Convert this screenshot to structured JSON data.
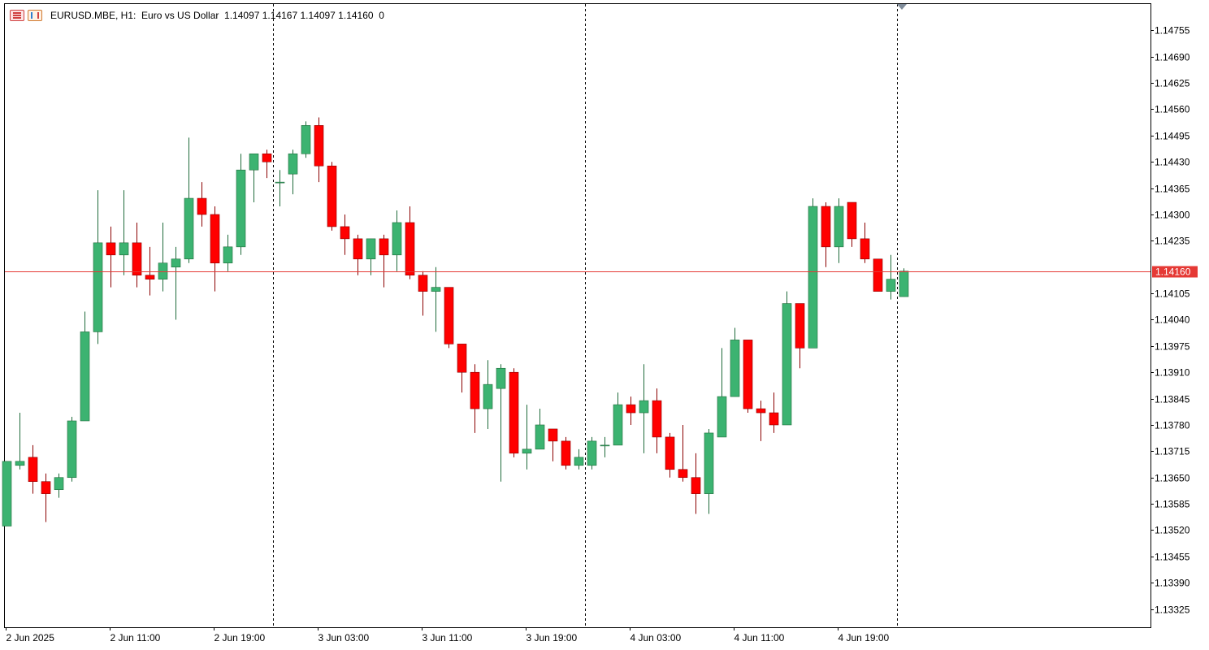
{
  "header": {
    "symbol_line": "EURUSD.MBE, H1:  Euro vs US Dollar  1.14097 1.14167 1.14097 1.14160  0"
  },
  "colors": {
    "bull": "#3cb371",
    "bull_border": "#1f6b3a",
    "bear": "#ff0000",
    "bear_border": "#8b0000",
    "price_line": "#e53935",
    "grid_sep": "#000000"
  },
  "chart_data": {
    "type": "candlestick",
    "timeframe": "H1",
    "symbol": "EURUSD.MBE",
    "current_price": 1.1416,
    "current_price_label": "1.14160",
    "y_ticks": [
      "1.14755",
      "1.14690",
      "1.14625",
      "1.14560",
      "1.14495",
      "1.14430",
      "1.14365",
      "1.14300",
      "1.14235",
      "1.14105",
      "1.14040",
      "1.13975",
      "1.13910",
      "1.13845",
      "1.13780",
      "1.13715",
      "1.13650",
      "1.13585",
      "1.13520",
      "1.13455",
      "1.13390",
      "1.13325"
    ],
    "x_labels": [
      "2 Jun 2025",
      "2 Jun 11:00",
      "2 Jun 19:00",
      "3 Jun 03:00",
      "3 Jun 11:00",
      "3 Jun 19:00",
      "4 Jun 03:00",
      "4 Jun 11:00",
      "4 Jun 19:00"
    ],
    "x_label_index": [
      0,
      8,
      16,
      24,
      32,
      40,
      48,
      56,
      64
    ],
    "day_separators": [
      21,
      45,
      69
    ],
    "ylim": [
      1.1328,
      1.1482
    ],
    "candles": [
      {
        "o": 1.1353,
        "h": 1.1369,
        "l": 1.1353,
        "c": 1.1369
      },
      {
        "o": 1.1368,
        "h": 1.1381,
        "l": 1.1367,
        "c": 1.1369
      },
      {
        "o": 1.137,
        "h": 1.1373,
        "l": 1.1361,
        "c": 1.1364
      },
      {
        "o": 1.1364,
        "h": 1.1366,
        "l": 1.1354,
        "c": 1.1361
      },
      {
        "o": 1.1362,
        "h": 1.1366,
        "l": 1.136,
        "c": 1.1365
      },
      {
        "o": 1.1365,
        "h": 1.138,
        "l": 1.1364,
        "c": 1.1379
      },
      {
        "o": 1.1379,
        "h": 1.1406,
        "l": 1.1379,
        "c": 1.1401
      },
      {
        "o": 1.1401,
        "h": 1.1436,
        "l": 1.1398,
        "c": 1.1423
      },
      {
        "o": 1.1423,
        "h": 1.1427,
        "l": 1.1412,
        "c": 1.142
      },
      {
        "o": 1.142,
        "h": 1.1436,
        "l": 1.1415,
        "c": 1.1423
      },
      {
        "o": 1.1423,
        "h": 1.1428,
        "l": 1.1412,
        "c": 1.1415
      },
      {
        "o": 1.1415,
        "h": 1.1422,
        "l": 1.141,
        "c": 1.1414
      },
      {
        "o": 1.1414,
        "h": 1.1428,
        "l": 1.1411,
        "c": 1.1418
      },
      {
        "o": 1.1417,
        "h": 1.1422,
        "l": 1.1404,
        "c": 1.1419
      },
      {
        "o": 1.1419,
        "h": 1.1449,
        "l": 1.1418,
        "c": 1.1434
      },
      {
        "o": 1.1434,
        "h": 1.1438,
        "l": 1.1427,
        "c": 1.143
      },
      {
        "o": 1.143,
        "h": 1.1432,
        "l": 1.1411,
        "c": 1.1418
      },
      {
        "o": 1.1418,
        "h": 1.1425,
        "l": 1.1416,
        "c": 1.1422
      },
      {
        "o": 1.1422,
        "h": 1.1445,
        "l": 1.142,
        "c": 1.1441
      },
      {
        "o": 1.1441,
        "h": 1.1445,
        "l": 1.1433,
        "c": 1.1445
      },
      {
        "o": 1.1445,
        "h": 1.1446,
        "l": 1.1439,
        "c": 1.1443
      },
      {
        "o": 1.1438,
        "h": 1.1441,
        "l": 1.1432,
        "c": 1.1438
      },
      {
        "o": 1.144,
        "h": 1.1446,
        "l": 1.1435,
        "c": 1.1445
      },
      {
        "o": 1.1445,
        "h": 1.1453,
        "l": 1.1444,
        "c": 1.1452
      },
      {
        "o": 1.1452,
        "h": 1.1454,
        "l": 1.1438,
        "c": 1.1442
      },
      {
        "o": 1.1442,
        "h": 1.1443,
        "l": 1.1426,
        "c": 1.1427
      },
      {
        "o": 1.1427,
        "h": 1.143,
        "l": 1.142,
        "c": 1.1424
      },
      {
        "o": 1.1424,
        "h": 1.1425,
        "l": 1.1415,
        "c": 1.1419
      },
      {
        "o": 1.1419,
        "h": 1.1424,
        "l": 1.1415,
        "c": 1.1424
      },
      {
        "o": 1.1424,
        "h": 1.1425,
        "l": 1.1412,
        "c": 1.142
      },
      {
        "o": 1.142,
        "h": 1.1431,
        "l": 1.1416,
        "c": 1.1428
      },
      {
        "o": 1.1428,
        "h": 1.1432,
        "l": 1.1414,
        "c": 1.1415
      },
      {
        "o": 1.1415,
        "h": 1.1416,
        "l": 1.1405,
        "c": 1.1411
      },
      {
        "o": 1.1411,
        "h": 1.1417,
        "l": 1.1401,
        "c": 1.1412
      },
      {
        "o": 1.1412,
        "h": 1.1412,
        "l": 1.1397,
        "c": 1.1398
      },
      {
        "o": 1.1398,
        "h": 1.1398,
        "l": 1.1386,
        "c": 1.1391
      },
      {
        "o": 1.1391,
        "h": 1.1393,
        "l": 1.1376,
        "c": 1.1382
      },
      {
        "o": 1.1382,
        "h": 1.1394,
        "l": 1.1377,
        "c": 1.1388
      },
      {
        "o": 1.1387,
        "h": 1.1393,
        "l": 1.1364,
        "c": 1.1392
      },
      {
        "o": 1.1391,
        "h": 1.1392,
        "l": 1.137,
        "c": 1.1371
      },
      {
        "o": 1.1371,
        "h": 1.1383,
        "l": 1.1367,
        "c": 1.1372
      },
      {
        "o": 1.1372,
        "h": 1.1382,
        "l": 1.1372,
        "c": 1.1378
      },
      {
        "o": 1.1377,
        "h": 1.1377,
        "l": 1.1369,
        "c": 1.1374
      },
      {
        "o": 1.1374,
        "h": 1.1375,
        "l": 1.1367,
        "c": 1.1368
      },
      {
        "o": 1.1368,
        "h": 1.1372,
        "l": 1.1367,
        "c": 1.137
      },
      {
        "o": 1.1368,
        "h": 1.1375,
        "l": 1.1367,
        "c": 1.1374
      },
      {
        "o": 1.1373,
        "h": 1.1375,
        "l": 1.137,
        "c": 1.1373
      },
      {
        "o": 1.1373,
        "h": 1.1386,
        "l": 1.1373,
        "c": 1.1383
      },
      {
        "o": 1.1383,
        "h": 1.1385,
        "l": 1.1378,
        "c": 1.1381
      },
      {
        "o": 1.1381,
        "h": 1.1393,
        "l": 1.1371,
        "c": 1.1384
      },
      {
        "o": 1.1384,
        "h": 1.1387,
        "l": 1.1371,
        "c": 1.1375
      },
      {
        "o": 1.1375,
        "h": 1.1376,
        "l": 1.1365,
        "c": 1.1367
      },
      {
        "o": 1.1367,
        "h": 1.1378,
        "l": 1.1364,
        "c": 1.1365
      },
      {
        "o": 1.1365,
        "h": 1.1371,
        "l": 1.1356,
        "c": 1.1361
      },
      {
        "o": 1.1361,
        "h": 1.1377,
        "l": 1.1356,
        "c": 1.1376
      },
      {
        "o": 1.1375,
        "h": 1.1397,
        "l": 1.1375,
        "c": 1.1385
      },
      {
        "o": 1.1385,
        "h": 1.1402,
        "l": 1.1385,
        "c": 1.1399
      },
      {
        "o": 1.1399,
        "h": 1.1399,
        "l": 1.1381,
        "c": 1.1382
      },
      {
        "o": 1.1382,
        "h": 1.1384,
        "l": 1.1374,
        "c": 1.1381
      },
      {
        "o": 1.1381,
        "h": 1.1386,
        "l": 1.1376,
        "c": 1.1378
      },
      {
        "o": 1.1378,
        "h": 1.1411,
        "l": 1.1378,
        "c": 1.1408
      },
      {
        "o": 1.1408,
        "h": 1.1408,
        "l": 1.1392,
        "c": 1.1397
      },
      {
        "o": 1.1397,
        "h": 1.1434,
        "l": 1.1397,
        "c": 1.1432
      },
      {
        "o": 1.1432,
        "h": 1.1433,
        "l": 1.1417,
        "c": 1.1422
      },
      {
        "o": 1.1422,
        "h": 1.1434,
        "l": 1.1418,
        "c": 1.1432
      },
      {
        "o": 1.1433,
        "h": 1.1433,
        "l": 1.1422,
        "c": 1.1424
      },
      {
        "o": 1.1424,
        "h": 1.1428,
        "l": 1.1418,
        "c": 1.1419
      },
      {
        "o": 1.1419,
        "h": 1.1419,
        "l": 1.1411,
        "c": 1.1411
      },
      {
        "o": 1.1411,
        "h": 1.142,
        "l": 1.1409,
        "c": 1.1414
      },
      {
        "o": 1.14097,
        "h": 1.14167,
        "l": 1.14097,
        "c": 1.1416
      }
    ]
  }
}
